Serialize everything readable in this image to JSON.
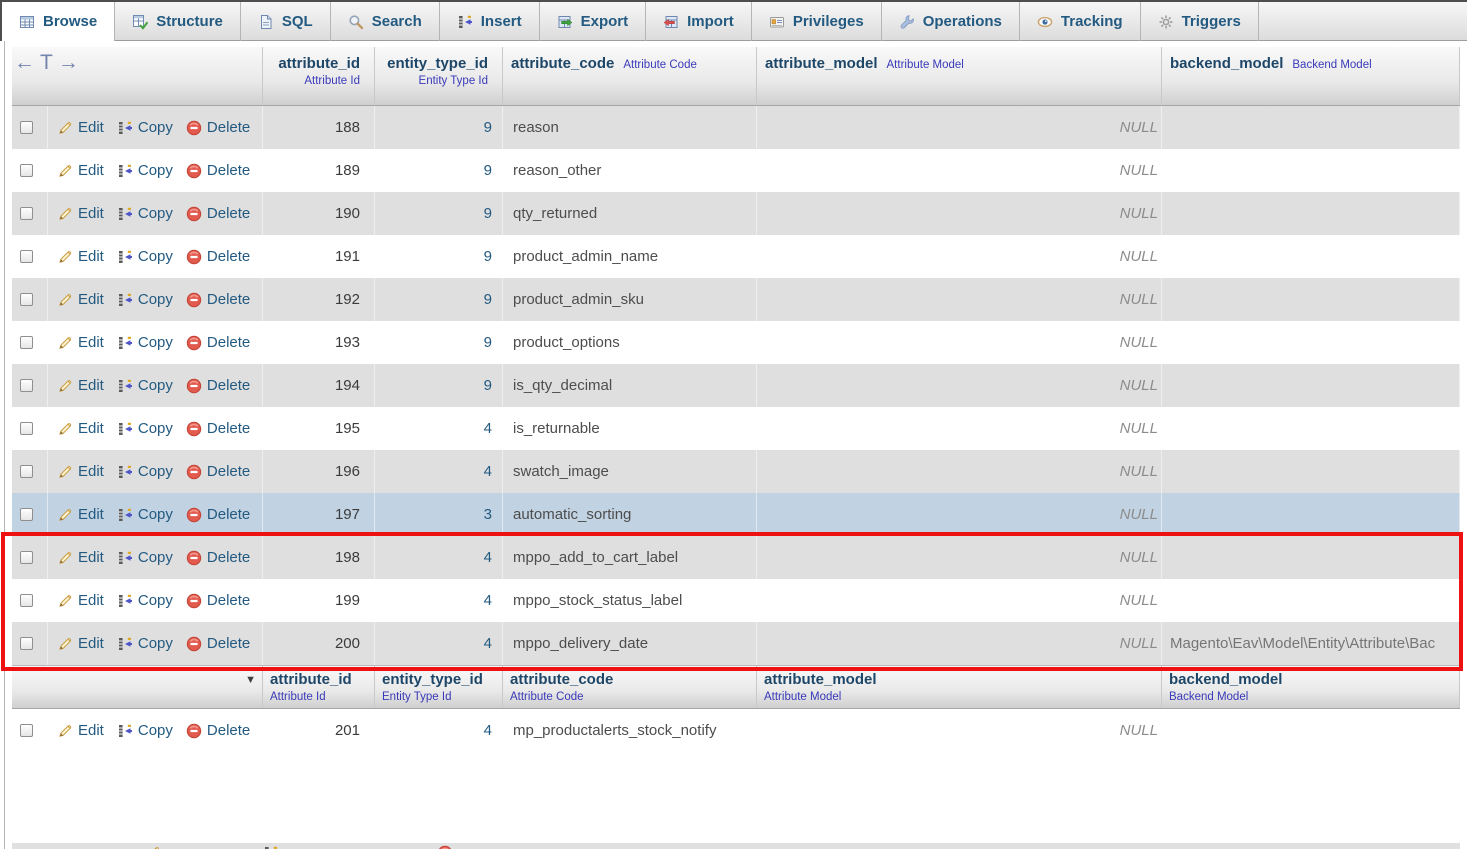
{
  "tab_bar": {
    "tabs": [
      {
        "label": "Browse",
        "icon": "browse-icon",
        "active": true
      },
      {
        "label": "Structure",
        "icon": "structure-icon",
        "active": false
      },
      {
        "label": "SQL",
        "icon": "sql-icon",
        "active": false
      },
      {
        "label": "Search",
        "icon": "search-icon",
        "active": false
      },
      {
        "label": "Insert",
        "icon": "insert-icon",
        "active": false
      },
      {
        "label": "Export",
        "icon": "export-icon",
        "active": false
      },
      {
        "label": "Import",
        "icon": "import-icon",
        "active": false
      },
      {
        "label": "Privileges",
        "icon": "privileges-icon",
        "active": false
      },
      {
        "label": "Operations",
        "icon": "operations-icon",
        "active": false
      },
      {
        "label": "Tracking",
        "icon": "tracking-icon",
        "active": false
      },
      {
        "label": "Triggers",
        "icon": "triggers-icon",
        "active": false
      }
    ]
  },
  "results": {
    "nav_arrows": {
      "left": "←",
      "table": "T",
      "right": "→"
    },
    "sort_indicator": "▼",
    "columns": [
      {
        "name": "attribute_id",
        "comment": "Attribute Id"
      },
      {
        "name": "entity_type_id",
        "comment": "Entity Type Id"
      },
      {
        "name": "attribute_code",
        "comment": "Attribute Code"
      },
      {
        "name": "attribute_model",
        "comment": "Attribute Model"
      },
      {
        "name": "backend_model",
        "comment": "Backend Model"
      }
    ],
    "actions": {
      "edit": "Edit",
      "copy": "Copy",
      "delete": "Delete"
    },
    "rows": [
      {
        "attribute_id": "188",
        "entity_type_id": "9",
        "attribute_code": "reason",
        "attribute_model": "NULL",
        "backend_model": ""
      },
      {
        "attribute_id": "189",
        "entity_type_id": "9",
        "attribute_code": "reason_other",
        "attribute_model": "NULL",
        "backend_model": ""
      },
      {
        "attribute_id": "190",
        "entity_type_id": "9",
        "attribute_code": "qty_returned",
        "attribute_model": "NULL",
        "backend_model": ""
      },
      {
        "attribute_id": "191",
        "entity_type_id": "9",
        "attribute_code": "product_admin_name",
        "attribute_model": "NULL",
        "backend_model": ""
      },
      {
        "attribute_id": "192",
        "entity_type_id": "9",
        "attribute_code": "product_admin_sku",
        "attribute_model": "NULL",
        "backend_model": ""
      },
      {
        "attribute_id": "193",
        "entity_type_id": "9",
        "attribute_code": "product_options",
        "attribute_model": "NULL",
        "backend_model": ""
      },
      {
        "attribute_id": "194",
        "entity_type_id": "9",
        "attribute_code": "is_qty_decimal",
        "attribute_model": "NULL",
        "backend_model": ""
      },
      {
        "attribute_id": "195",
        "entity_type_id": "4",
        "attribute_code": "is_returnable",
        "attribute_model": "NULL",
        "backend_model": ""
      },
      {
        "attribute_id": "196",
        "entity_type_id": "4",
        "attribute_code": "swatch_image",
        "attribute_model": "NULL",
        "backend_model": ""
      },
      {
        "attribute_id": "197",
        "entity_type_id": "3",
        "attribute_code": "automatic_sorting",
        "attribute_model": "NULL",
        "backend_model": "",
        "highlighted": true
      },
      {
        "attribute_id": "198",
        "entity_type_id": "4",
        "attribute_code": "mppo_add_to_cart_label",
        "attribute_model": "NULL",
        "backend_model": ""
      },
      {
        "attribute_id": "199",
        "entity_type_id": "4",
        "attribute_code": "mppo_stock_status_label",
        "attribute_model": "NULL",
        "backend_model": ""
      },
      {
        "attribute_id": "200",
        "entity_type_id": "4",
        "attribute_code": "mppo_delivery_date",
        "attribute_model": "NULL",
        "backend_model": "Magento\\Eav\\Model\\Entity\\Attribute\\Bac"
      }
    ],
    "rows_after_repeat_header": [
      {
        "attribute_id": "201",
        "entity_type_id": "4",
        "attribute_code": "mp_productalerts_stock_notify",
        "attribute_model": "NULL",
        "backend_model": ""
      }
    ]
  },
  "annotation": {
    "highlight_color": "#ee1111"
  },
  "colors": {
    "link": "#235a81",
    "header_name": "#1d4668",
    "comment": "#3939b9",
    "null_text": "#8c8c8c",
    "row_alt": "#dfdfdf",
    "row_marked": "#c1d2e2"
  }
}
